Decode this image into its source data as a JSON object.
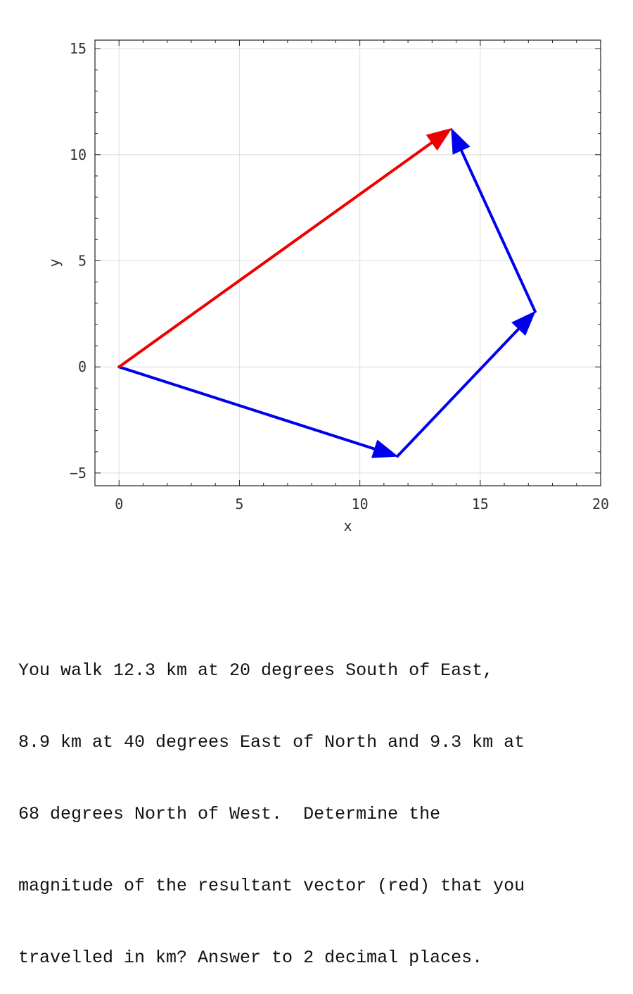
{
  "chart_data": {
    "type": "line",
    "title": "",
    "xlabel": "x",
    "ylabel": "y",
    "xlim": [
      -1,
      20
    ],
    "ylim": [
      -5.6,
      15.4
    ],
    "xticks": [
      0,
      5,
      10,
      15,
      20
    ],
    "yticks": [
      -5,
      0,
      5,
      10,
      15
    ],
    "grid": true,
    "vectors": [
      {
        "color": "#0000ee",
        "from": [
          0,
          0
        ],
        "to": [
          11.56,
          -4.21
        ]
      },
      {
        "color": "#0000ee",
        "from": [
          11.56,
          -4.21
        ],
        "to": [
          17.28,
          2.61
        ]
      },
      {
        "color": "#0000ee",
        "from": [
          17.28,
          2.61
        ],
        "to": [
          13.8,
          11.23
        ]
      },
      {
        "color": "#ee0000",
        "from": [
          0,
          0
        ],
        "to": [
          13.8,
          11.23
        ]
      }
    ]
  },
  "question": {
    "lines": [
      "You walk 12.3 km at 20 degrees South of East,",
      "8.9 km at 40 degrees East of North and 9.3 km at",
      "68 degrees North of West.  Determine the",
      "magnitude of the resultant vector (red) that you",
      "travelled in km? Answer to 2 decimal places."
    ]
  }
}
